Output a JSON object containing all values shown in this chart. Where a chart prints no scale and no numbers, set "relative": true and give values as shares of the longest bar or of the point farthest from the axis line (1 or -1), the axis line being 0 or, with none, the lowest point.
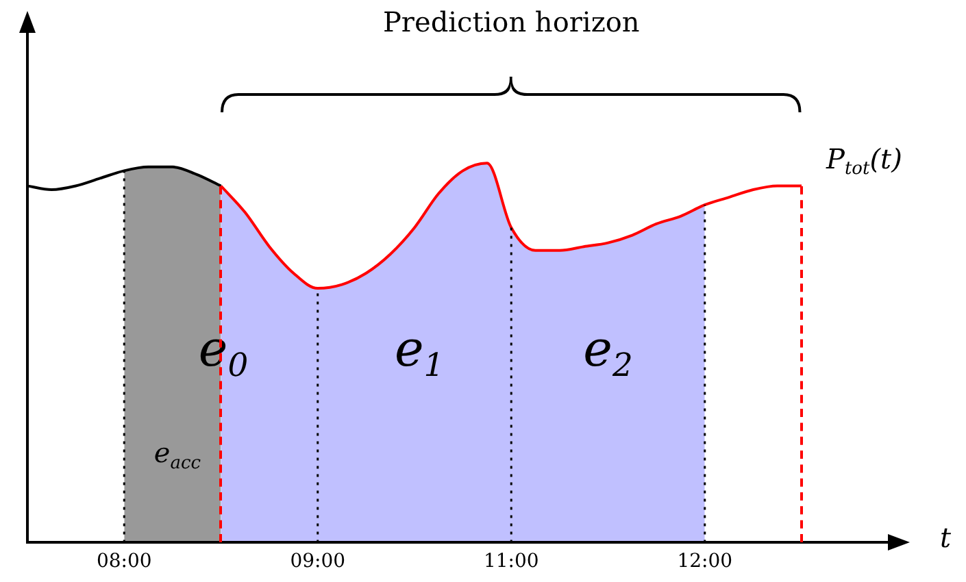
{
  "chart_data": {
    "type": "area",
    "title": "Prediction horizon",
    "xlabel": "t",
    "relative": true,
    "marker": "none",
    "categories": [
      null,
      null,
      null,
      null,
      "08:00",
      null,
      null,
      null,
      null,
      null,
      null,
      null,
      "09:00",
      null,
      null,
      null,
      null,
      null,
      null,
      null,
      "11:00",
      null,
      null,
      null,
      null,
      null,
      null,
      null,
      "12:00",
      null,
      null,
      null,
      null
    ],
    "series": [
      {
        "type": "area",
        "color": "#999999",
        "values": [
          null,
          null,
          null,
          null,
          0.98,
          0.99,
          0.99,
          0.97,
          0.94,
          null,
          null,
          null,
          null,
          null,
          null,
          null,
          null,
          null,
          null,
          null,
          null,
          null,
          null,
          null,
          null,
          null,
          null,
          null,
          null,
          null,
          null,
          null,
          null
        ]
      },
      {
        "type": "area",
        "color": "#c0c0ff",
        "values": [
          null,
          null,
          null,
          null,
          null,
          null,
          null,
          null,
          0.94,
          0.87,
          0.78,
          0.71,
          0.67,
          0.68,
          0.71,
          0.76,
          0.83,
          0.92,
          0.98,
          1,
          0.83,
          0.77,
          0.77,
          0.78,
          0.79,
          0.81,
          0.84,
          0.86,
          0.89,
          null,
          null,
          null,
          null
        ]
      },
      {
        "type": "line",
        "color": "#000000",
        "values": [
          0.94,
          0.93,
          0.94,
          0.96,
          0.98,
          0.99,
          0.99,
          0.97,
          0.94,
          null,
          null,
          null,
          null,
          null,
          null,
          null,
          null,
          null,
          null,
          null,
          null,
          null,
          null,
          null,
          null,
          null,
          null,
          null,
          null,
          null,
          null,
          null,
          null
        ]
      },
      {
        "type": "line",
        "color": "#ff0000",
        "name": "P$_{tot}$(t)",
        "values": [
          null,
          null,
          null,
          null,
          null,
          null,
          null,
          null,
          0.94,
          0.87,
          0.78,
          0.71,
          0.67,
          0.68,
          0.71,
          0.76,
          0.83,
          0.92,
          0.98,
          1,
          0.83,
          0.77,
          0.77,
          0.78,
          0.79,
          0.81,
          0.84,
          0.86,
          0.89,
          0.91,
          0.93,
          0.94,
          0.94
        ]
      }
    ],
    "grid": "x",
    "annotations": [
      "e$_{acc}$",
      "e$_{0}$",
      "e$_{1}$",
      "e$_{2}$"
    ]
  }
}
